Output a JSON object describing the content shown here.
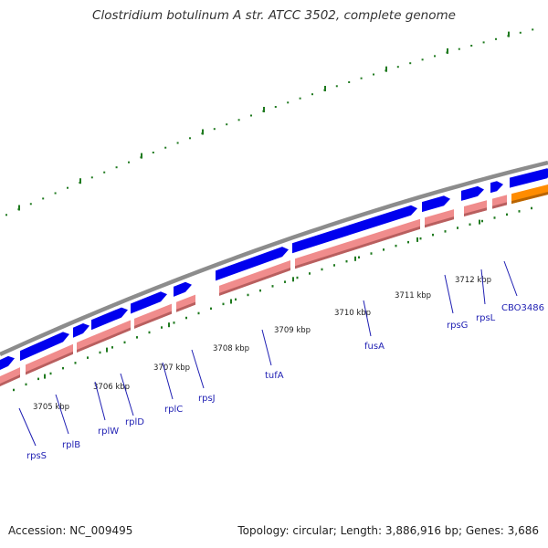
{
  "title": "Clostridium botulinum A str. ATCC 3502, complete genome",
  "footer": {
    "accession": "Accession: NC_009495",
    "summary": "Topology: circular; Length: 3,886,916 bp; Genes: 3,686"
  },
  "colors": {
    "backbone": "#8c8c8c",
    "gene": "#0000ee",
    "cds": "#f08c8c",
    "cds_shadow": "#b85f5f",
    "hypothetical": "#ff8c00",
    "tick": "#1f7a1f",
    "label": "#1f1fb3"
  },
  "scale_labels": [
    "3705 kbp",
    "3706 kbp",
    "3707 kbp",
    "3708 kbp",
    "3709 kbp",
    "3710 kbp",
    "3711 kbp",
    "3712 kbp"
  ],
  "gene_labels": [
    "rpsS",
    "rplB",
    "rplW",
    "rplD",
    "rplC",
    "rpsJ",
    "tufA",
    "fusA",
    "rpsG",
    "rpsL",
    "CBO3486"
  ]
}
